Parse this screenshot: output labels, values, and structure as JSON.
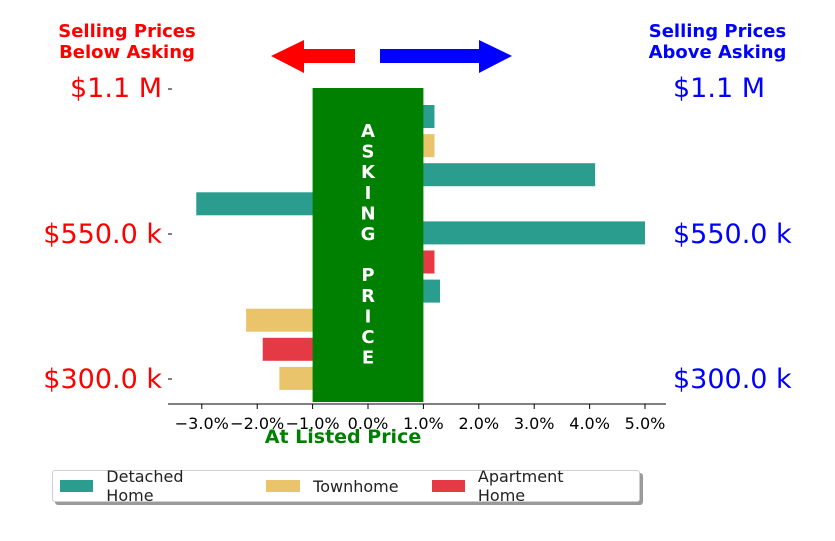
{
  "header": {
    "left_line1": "Selling Prices",
    "left_line2": "Below Asking",
    "right_line1": "Selling Prices",
    "right_line2": "Above Asking",
    "left_color": "#ff0000",
    "right_color": "#0000ff"
  },
  "price_labels": {
    "top": "$1.1 M",
    "middle": "$550.0 k",
    "bottom": "$300.0 k"
  },
  "center_band": {
    "text_top": "ASKING",
    "text_bottom": "PRICE",
    "color": "#008000"
  },
  "xlabel": "At Listed Price",
  "xlabel_color": "#008000",
  "chart_data": {
    "type": "bar",
    "orientation": "horizontal",
    "xlim": [
      -3.5,
      5.2
    ],
    "xticks": [
      -3,
      -2,
      -1,
      0,
      1,
      2,
      3,
      4,
      5
    ],
    "tick_labels": [
      "−3.0%",
      "−2.0%",
      "−1.0%",
      "0.0%",
      "1.0%",
      "2.0%",
      "3.0%",
      "4.0%",
      "5.0%"
    ],
    "y_ticks": [
      "$1.1 M",
      "$550.0 k",
      "$300.0 k"
    ],
    "series": [
      {
        "name": "Detached Home",
        "color": "#2a9d8f"
      },
      {
        "name": "Townhome",
        "color": "#e9c46a"
      },
      {
        "name": "Apartment Home",
        "color": "#e63946"
      }
    ],
    "bars": [
      {
        "series": "Detached Home",
        "value": 1.2
      },
      {
        "series": "Townhome",
        "value": 1.2
      },
      {
        "series": "Detached Home",
        "value": 4.1
      },
      {
        "series": "Detached Home",
        "value": -3.1
      },
      {
        "series": "Detached Home",
        "value": 5.0
      },
      {
        "series": "Apartment Home",
        "value": 1.2
      },
      {
        "series": "Detached Home",
        "value": 1.3
      },
      {
        "series": "Townhome",
        "value": -2.2
      },
      {
        "series": "Apartment Home",
        "value": -1.9
      },
      {
        "series": "Townhome",
        "value": -1.6
      }
    ],
    "asking_band": [
      -1.0,
      1.0
    ],
    "arrows": [
      {
        "direction": "left",
        "color": "#ff0000"
      },
      {
        "direction": "right",
        "color": "#0000ff"
      }
    ],
    "legend": "bottom"
  }
}
